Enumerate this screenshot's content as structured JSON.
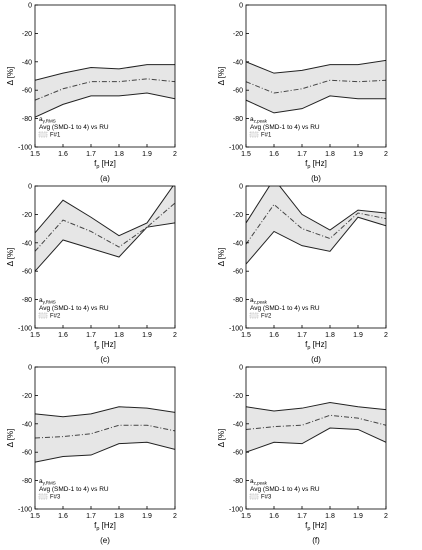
{
  "figure": {
    "y_axis_label": "Δ [%]",
    "x_axis_label_main": "f",
    "x_axis_label_sub": "p",
    "x_axis_label_unit": " [Hz]",
    "legend_series": "Avg (SMD-1 to 4)  vs  RU",
    "colors": {
      "band": "#e6e6e6",
      "line": "#222222",
      "mid": "#444444",
      "axis": "#000000"
    }
  },
  "chart_data": [
    {
      "type": "area",
      "panel": "(a)",
      "legend_title_main": "a",
      "legend_title_sub": "y,RMS",
      "legend_f": "F#1",
      "x": [
        1.5,
        1.6,
        1.7,
        1.8,
        1.9,
        2.0
      ],
      "xlim": [
        1.5,
        2.0
      ],
      "ylim": [
        -100,
        0
      ],
      "xticks": [
        "1.5",
        "1.6",
        "1.7",
        "1.8",
        "1.9",
        "2"
      ],
      "yticks": [
        "0",
        "-20",
        "-40",
        "-60",
        "-80",
        "-100"
      ],
      "series": [
        {
          "values": [
            -53,
            -48,
            -44,
            -45,
            -42,
            -42
          ]
        },
        {
          "values": [
            -67,
            -59,
            -54,
            -54,
            -52,
            -54
          ]
        },
        {
          "values": [
            -79,
            -70,
            -64,
            -64,
            -62,
            -66
          ]
        }
      ]
    },
    {
      "type": "area",
      "panel": "(b)",
      "legend_title_main": "a",
      "legend_title_sub": "z,peak",
      "legend_f": "F#1",
      "x": [
        1.5,
        1.6,
        1.7,
        1.8,
        1.9,
        2.0
      ],
      "xlim": [
        1.5,
        2.0
      ],
      "ylim": [
        -100,
        0
      ],
      "xticks": [
        "1.5",
        "1.6",
        "1.7",
        "1.8",
        "1.9",
        "2"
      ],
      "yticks": [
        "0",
        "-20",
        "-40",
        "-60",
        "-80",
        "-100"
      ],
      "series": [
        {
          "values": [
            -40,
            -48,
            -46,
            -42,
            -42,
            -39
          ]
        },
        {
          "values": [
            -54,
            -62,
            -59,
            -53,
            -54,
            -53
          ]
        },
        {
          "values": [
            -67,
            -76,
            -73,
            -64,
            -66,
            -66
          ]
        }
      ]
    },
    {
      "type": "area",
      "panel": "(c)",
      "legend_title_main": "a",
      "legend_title_sub": "y,RMS",
      "legend_f": "F#2",
      "x": [
        1.5,
        1.6,
        1.7,
        1.8,
        1.9,
        2.0
      ],
      "xlim": [
        1.5,
        2.0
      ],
      "ylim": [
        -100,
        0
      ],
      "xticks": [
        "1.5",
        "1.6",
        "1.7",
        "1.8",
        "1.9",
        "2"
      ],
      "yticks": [
        "0",
        "-20",
        "-40",
        "-60",
        "-80",
        "-100"
      ],
      "series": [
        {
          "values": [
            -33,
            -10,
            -22,
            -35,
            -26,
            2
          ]
        },
        {
          "values": [
            -46,
            -24,
            -32,
            -43,
            -29,
            -12
          ]
        },
        {
          "values": [
            -60,
            -38,
            -44,
            -50,
            -29,
            -26
          ]
        }
      ]
    },
    {
      "type": "area",
      "panel": "(d)",
      "legend_title_main": "a",
      "legend_title_sub": "z,peak",
      "legend_f": "F#2",
      "x": [
        1.5,
        1.6,
        1.7,
        1.8,
        1.9,
        2.0
      ],
      "xlim": [
        1.5,
        2.0
      ],
      "ylim": [
        -100,
        0
      ],
      "xticks": [
        "1.5",
        "1.6",
        "1.7",
        "1.8",
        "1.9",
        "2"
      ],
      "yticks": [
        "0",
        "-20",
        "-40",
        "-60",
        "-80",
        "-100"
      ],
      "series": [
        {
          "values": [
            -26,
            5,
            -20,
            -31,
            -17,
            -19
          ]
        },
        {
          "values": [
            -41,
            -13,
            -30,
            -37,
            -19,
            -23
          ]
        },
        {
          "values": [
            -55,
            -32,
            -42,
            -46,
            -22,
            -28
          ]
        }
      ]
    },
    {
      "type": "area",
      "panel": "(e)",
      "legend_title_main": "a",
      "legend_title_sub": "y,RMS",
      "legend_f": "F#3",
      "x": [
        1.5,
        1.6,
        1.7,
        1.8,
        1.9,
        2.0
      ],
      "xlim": [
        1.5,
        2.0
      ],
      "ylim": [
        -100,
        0
      ],
      "xticks": [
        "1.5",
        "1.6",
        "1.7",
        "1.8",
        "1.9",
        "2"
      ],
      "yticks": [
        "0",
        "-20",
        "-40",
        "-60",
        "-80",
        "-100"
      ],
      "series": [
        {
          "values": [
            -33,
            -35,
            -33,
            -28,
            -29,
            -32
          ]
        },
        {
          "values": [
            -50,
            -49,
            -47,
            -41,
            -41,
            -45
          ]
        },
        {
          "values": [
            -67,
            -63,
            -62,
            -54,
            -53,
            -58
          ]
        }
      ]
    },
    {
      "type": "area",
      "panel": "(f)",
      "legend_title_main": "a",
      "legend_title_sub": "z,peak",
      "legend_f": "F#3",
      "x": [
        1.5,
        1.6,
        1.7,
        1.8,
        1.9,
        2.0
      ],
      "xlim": [
        1.5,
        2.0
      ],
      "ylim": [
        -100,
        0
      ],
      "xticks": [
        "1.5",
        "1.6",
        "1.7",
        "1.8",
        "1.9",
        "2"
      ],
      "yticks": [
        "0",
        "-20",
        "-40",
        "-60",
        "-80",
        "-100"
      ],
      "series": [
        {
          "values": [
            -28,
            -31,
            -29,
            -25,
            -28,
            -30
          ]
        },
        {
          "values": [
            -44,
            -42,
            -41,
            -34,
            -36,
            -41
          ]
        },
        {
          "values": [
            -60,
            -53,
            -54,
            -43,
            -44,
            -53
          ]
        }
      ]
    }
  ]
}
